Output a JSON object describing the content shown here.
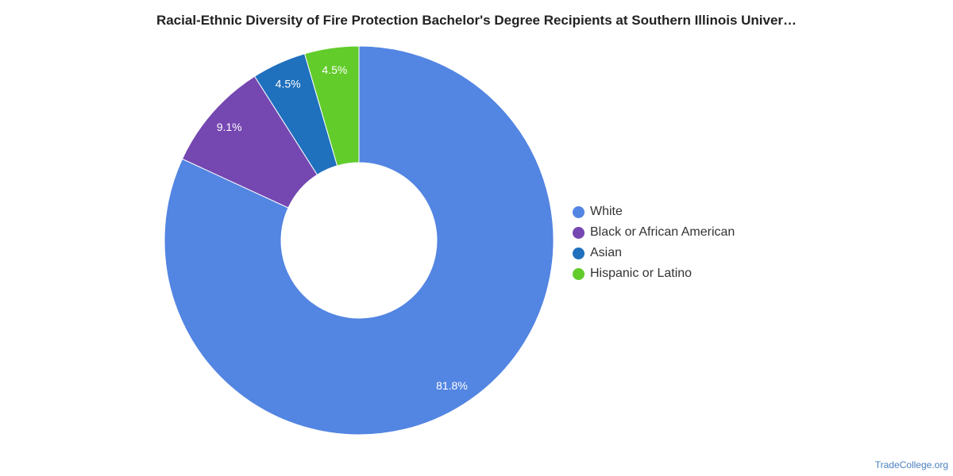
{
  "chart_data": {
    "type": "pie",
    "title": "Racial-Ethnic Diversity of Fire Protection Bachelor's Degree Recipients at Southern Illinois Univer…",
    "donut": true,
    "legend_position": "right",
    "slices": [
      {
        "name": "White",
        "value": 81.8,
        "label": "81.8%",
        "color": "#5385e2"
      },
      {
        "name": "Black or African American",
        "value": 9.1,
        "label": "9.1%",
        "color": "#7547b1"
      },
      {
        "name": "Asian",
        "value": 4.5,
        "label": "4.5%",
        "color": "#1f70bd"
      },
      {
        "name": "Hispanic or Latino",
        "value": 4.5,
        "label": "4.5%",
        "color": "#62cc2b"
      }
    ]
  },
  "footer": {
    "credit": "TradeCollege.org"
  }
}
